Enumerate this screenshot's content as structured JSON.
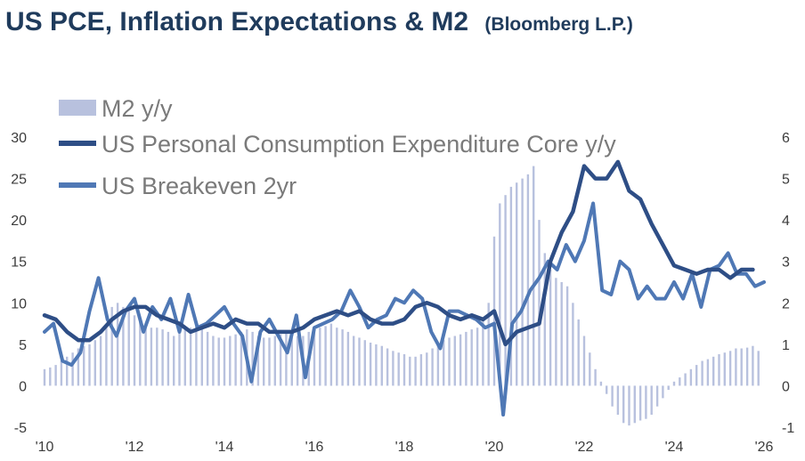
{
  "colors": {
    "m2": "#b8c1de",
    "pce": "#2e4e86",
    "breakeven": "#4f78b5",
    "title": "#1f3b5c",
    "ticks": "#3c3c3c",
    "legend_text": "#7a7a7a"
  },
  "chart_data": {
    "type": "bar+line",
    "title": "US PCE, Inflation Expectations & M2",
    "subtitle": "(Bloomberg L.P.)",
    "legend_position": "top-left",
    "grid": false,
    "x_ticks": [
      "'10",
      "'12",
      "'14",
      "'16",
      "'18",
      "'20",
      "'22",
      "'24",
      "'26"
    ],
    "x_range": [
      2010.0,
      2026.0
    ],
    "y_left": {
      "ticks": [
        "30",
        "25",
        "20",
        "15",
        "10",
        "5",
        "0",
        "-5"
      ],
      "range": [
        -5,
        30
      ]
    },
    "y_right": {
      "ticks": [
        "6",
        "5",
        "4",
        "3",
        "2",
        "1",
        "0",
        "-1"
      ],
      "range": [
        -1,
        6
      ]
    },
    "series": [
      {
        "name": "M2 y/y",
        "kind": "bar",
        "axis": "left",
        "x": [
          2010.0,
          2010.125,
          2010.25,
          2010.375,
          2010.5,
          2010.625,
          2010.75,
          2010.875,
          2011.0,
          2011.125,
          2011.25,
          2011.375,
          2011.5,
          2011.625,
          2011.75,
          2011.875,
          2012.0,
          2012.125,
          2012.25,
          2012.375,
          2012.5,
          2012.625,
          2012.75,
          2012.875,
          2013.0,
          2013.125,
          2013.25,
          2013.375,
          2013.5,
          2013.625,
          2013.75,
          2013.875,
          2014.0,
          2014.125,
          2014.25,
          2014.375,
          2014.5,
          2014.625,
          2014.75,
          2014.875,
          2015.0,
          2015.125,
          2015.25,
          2015.375,
          2015.5,
          2015.625,
          2015.75,
          2015.875,
          2016.0,
          2016.125,
          2016.25,
          2016.375,
          2016.5,
          2016.625,
          2016.75,
          2016.875,
          2017.0,
          2017.125,
          2017.25,
          2017.375,
          2017.5,
          2017.625,
          2017.75,
          2017.875,
          2018.0,
          2018.125,
          2018.25,
          2018.375,
          2018.5,
          2018.625,
          2018.75,
          2018.875,
          2019.0,
          2019.125,
          2019.25,
          2019.375,
          2019.5,
          2019.625,
          2019.75,
          2019.875,
          2020.0,
          2020.125,
          2020.25,
          2020.375,
          2020.5,
          2020.625,
          2020.75,
          2020.875,
          2021.0,
          2021.125,
          2021.25,
          2021.375,
          2021.5,
          2021.625,
          2021.75,
          2021.875,
          2022.0,
          2022.125,
          2022.25,
          2022.375,
          2022.5,
          2022.625,
          2022.75,
          2022.875,
          2023.0,
          2023.125,
          2023.25,
          2023.375,
          2023.5,
          2023.625,
          2023.75,
          2023.875,
          2024.0,
          2024.125,
          2024.25,
          2024.375,
          2024.5,
          2024.625,
          2024.75,
          2024.875,
          2025.0,
          2025.125,
          2025.25,
          2025.375,
          2025.5,
          2025.625,
          2025.75,
          2025.875
        ],
        "values": [
          2.0,
          2.2,
          2.5,
          3.0,
          3.5,
          4.0,
          4.5,
          4.8,
          5.0,
          5.5,
          6.0,
          7.0,
          9.5,
          10.0,
          9.5,
          9.0,
          8.5,
          8.0,
          7.5,
          7.0,
          7.0,
          6.8,
          6.5,
          6.0,
          6.5,
          6.8,
          7.0,
          7.2,
          7.0,
          6.5,
          6.0,
          5.8,
          5.8,
          6.0,
          6.2,
          6.5,
          6.8,
          6.5,
          6.0,
          5.8,
          5.8,
          6.0,
          6.2,
          6.5,
          6.2,
          6.0,
          6.0,
          6.5,
          6.8,
          7.0,
          7.2,
          7.5,
          7.0,
          6.8,
          6.5,
          6.0,
          5.8,
          5.5,
          5.2,
          5.0,
          4.8,
          4.5,
          4.2,
          4.0,
          3.8,
          3.5,
          3.5,
          3.8,
          4.0,
          4.5,
          5.0,
          5.5,
          5.8,
          6.0,
          6.2,
          6.5,
          6.8,
          7.0,
          8.0,
          10.0,
          18.0,
          22.0,
          23.0,
          24.0,
          24.5,
          25.0,
          25.5,
          26.5,
          20.0,
          16.0,
          14.0,
          13.0,
          12.5,
          12.0,
          10.0,
          8.0,
          6.0,
          4.0,
          2.0,
          0.5,
          -1.0,
          -2.5,
          -3.5,
          -4.5,
          -4.8,
          -4.5,
          -4.2,
          -4.0,
          -3.5,
          -2.5,
          -1.5,
          -0.5,
          0.5,
          1.0,
          1.5,
          2.0,
          2.5,
          3.0,
          3.2,
          3.5,
          3.8,
          4.0,
          4.2,
          4.5,
          4.5,
          4.6,
          4.8,
          4.2
        ]
      },
      {
        "name": "US Personal Consumption Expenditure Core y/y",
        "kind": "line",
        "axis": "right",
        "x": [
          2010.0,
          2010.25,
          2010.5,
          2010.75,
          2011.0,
          2011.25,
          2011.5,
          2011.75,
          2012.0,
          2012.25,
          2012.5,
          2012.75,
          2013.0,
          2013.25,
          2013.5,
          2013.75,
          2014.0,
          2014.25,
          2014.5,
          2014.75,
          2015.0,
          2015.25,
          2015.5,
          2015.75,
          2016.0,
          2016.25,
          2016.5,
          2016.75,
          2017.0,
          2017.25,
          2017.5,
          2017.75,
          2018.0,
          2018.25,
          2018.5,
          2018.75,
          2019.0,
          2019.25,
          2019.5,
          2019.75,
          2020.0,
          2020.25,
          2020.5,
          2020.75,
          2021.0,
          2021.25,
          2021.5,
          2021.75,
          2022.0,
          2022.25,
          2022.5,
          2022.75,
          2023.0,
          2023.25,
          2023.5,
          2023.75,
          2024.0,
          2024.25,
          2024.5,
          2024.75,
          2025.0,
          2025.25,
          2025.5,
          2025.75
        ],
        "values": [
          1.7,
          1.6,
          1.3,
          1.1,
          1.1,
          1.3,
          1.6,
          1.8,
          1.9,
          1.9,
          1.7,
          1.6,
          1.5,
          1.3,
          1.4,
          1.5,
          1.4,
          1.6,
          1.5,
          1.5,
          1.3,
          1.3,
          1.3,
          1.4,
          1.6,
          1.7,
          1.8,
          1.7,
          1.8,
          1.6,
          1.5,
          1.5,
          1.6,
          1.9,
          2.0,
          1.9,
          1.7,
          1.6,
          1.7,
          1.6,
          1.8,
          1.0,
          1.3,
          1.4,
          1.5,
          3.0,
          3.7,
          4.2,
          5.3,
          5.0,
          5.0,
          5.4,
          4.7,
          4.5,
          3.9,
          3.4,
          2.9,
          2.8,
          2.7,
          2.8,
          2.8,
          2.6,
          2.8,
          2.8
        ]
      },
      {
        "name": "US Breakeven 2yr",
        "kind": "line",
        "axis": "right",
        "x": [
          2010.0,
          2010.2,
          2010.4,
          2010.6,
          2010.8,
          2011.0,
          2011.2,
          2011.4,
          2011.6,
          2011.8,
          2012.0,
          2012.2,
          2012.4,
          2012.6,
          2012.8,
          2013.0,
          2013.2,
          2013.4,
          2013.6,
          2013.8,
          2014.0,
          2014.2,
          2014.4,
          2014.6,
          2014.8,
          2015.0,
          2015.2,
          2015.4,
          2015.6,
          2015.8,
          2016.0,
          2016.2,
          2016.4,
          2016.6,
          2016.8,
          2017.0,
          2017.2,
          2017.4,
          2017.6,
          2017.8,
          2018.0,
          2018.2,
          2018.4,
          2018.6,
          2018.8,
          2019.0,
          2019.2,
          2019.4,
          2019.6,
          2019.8,
          2020.0,
          2020.2,
          2020.4,
          2020.6,
          2020.8,
          2021.0,
          2021.2,
          2021.4,
          2021.6,
          2021.8,
          2022.0,
          2022.2,
          2022.4,
          2022.6,
          2022.8,
          2023.0,
          2023.2,
          2023.4,
          2023.6,
          2023.8,
          2024.0,
          2024.2,
          2024.4,
          2024.6,
          2024.8,
          2025.0,
          2025.2,
          2025.4,
          2025.6,
          2025.8,
          2026.0
        ],
        "values": [
          1.3,
          1.5,
          0.6,
          0.5,
          0.8,
          1.8,
          2.6,
          1.6,
          1.2,
          1.8,
          2.1,
          1.3,
          1.9,
          1.6,
          2.1,
          1.3,
          2.2,
          1.4,
          1.5,
          1.7,
          1.9,
          1.5,
          1.2,
          0.1,
          1.3,
          1.6,
          1.2,
          0.8,
          1.7,
          0.2,
          1.4,
          1.5,
          1.6,
          1.8,
          2.3,
          1.9,
          1.4,
          1.6,
          1.7,
          2.1,
          2.0,
          2.3,
          2.1,
          1.3,
          0.9,
          1.8,
          1.8,
          1.7,
          1.6,
          1.4,
          1.5,
          -0.7,
          1.5,
          1.8,
          2.3,
          2.6,
          3.0,
          2.8,
          3.4,
          3.0,
          3.5,
          4.4,
          2.3,
          2.2,
          3.0,
          2.8,
          2.1,
          2.4,
          2.1,
          2.1,
          2.5,
          2.1,
          2.7,
          1.9,
          2.8,
          2.9,
          3.2,
          2.7,
          2.7,
          2.4,
          2.5
        ]
      }
    ]
  }
}
